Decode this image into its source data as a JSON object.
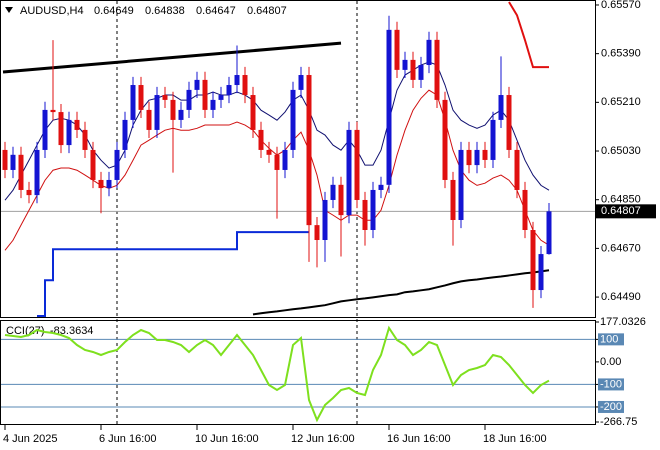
{
  "chart_data": {
    "type": "candlestick",
    "symbol": "AUDUSD,H4",
    "categories": [
      "4 Jun 2025",
      null,
      null,
      null,
      null,
      null,
      null,
      null,
      null,
      null,
      null,
      null,
      "6 Jun 16:00",
      null,
      null,
      null,
      null,
      null,
      null,
      null,
      null,
      null,
      null,
      null,
      "10 Jun 16:00",
      null,
      null,
      null,
      null,
      null,
      null,
      null,
      null,
      null,
      null,
      null,
      "12 Jun 16:00",
      null,
      null,
      null,
      null,
      null,
      null,
      null,
      null,
      null,
      null,
      null,
      "16 Jun 16:00",
      null,
      null,
      null,
      null,
      null,
      null,
      null,
      null,
      null,
      null,
      null,
      "18 Jun 16:00",
      null,
      null,
      null,
      null,
      null,
      null,
      null,
      null
    ],
    "open": [
      0.65034,
      0.6496,
      0.65016,
      0.64886,
      0.64867,
      0.65034,
      0.65182,
      0.65174,
      0.65052,
      0.65145,
      0.65108,
      0.65034,
      0.64923,
      0.64893,
      0.64923,
      0.65034,
      0.65145,
      0.65274,
      0.65182,
      0.65108,
      0.65237,
      0.65219,
      0.65145,
      0.65182,
      0.65256,
      0.65293,
      0.65182,
      0.65219,
      0.65237,
      0.65274,
      0.65311,
      0.65237,
      0.65108,
      0.65034,
      0.65016,
      0.6496,
      0.65034,
      0.65256,
      0.65311,
      0.64756,
      0.64701,
      0.64849,
      0.64905,
      0.64793,
      0.65108,
      0.64849,
      0.64738,
      0.64886,
      0.64905,
      0.65478,
      0.6533,
      0.65367,
      0.65293,
      0.65348,
      0.65441,
      0.65219,
      0.64923,
      0.64775,
      0.65034,
      0.64978,
      0.65034,
      0.64997,
      0.65145,
      0.65237,
      0.65034,
      0.64886,
      0.64738,
      0.64516,
      0.64649
    ],
    "high": [
      0.65064,
      0.65046,
      0.65046,
      0.64916,
      0.65064,
      0.65212,
      0.6544,
      0.65204,
      0.65175,
      0.65175,
      0.65138,
      0.65064,
      0.64953,
      0.64953,
      0.65064,
      0.65175,
      0.65304,
      0.65304,
      0.65212,
      0.65267,
      0.65267,
      0.65249,
      0.65212,
      0.65286,
      0.65323,
      0.65323,
      0.65249,
      0.65267,
      0.65304,
      0.6542,
      0.65341,
      0.65267,
      0.65138,
      0.65064,
      0.65046,
      0.65064,
      0.65286,
      0.65341,
      0.65341,
      0.64786,
      0.64879,
      0.64935,
      0.64935,
      0.65138,
      0.65138,
      0.64879,
      0.64916,
      0.64935,
      0.6553,
      0.65508,
      0.65397,
      0.65397,
      0.65378,
      0.65471,
      0.65471,
      0.65249,
      0.64953,
      0.65064,
      0.65064,
      0.65064,
      0.65064,
      0.65175,
      0.6538,
      0.65267,
      0.65064,
      0.64916,
      0.64768,
      0.64679,
      0.64838
    ],
    "low": [
      0.6493,
      0.6493,
      0.64856,
      0.64837,
      0.64837,
      0.65004,
      0.65144,
      0.65022,
      0.65022,
      0.65078,
      0.65004,
      0.64893,
      0.648,
      0.64863,
      0.64893,
      0.65004,
      0.65115,
      0.65152,
      0.65078,
      0.65078,
      0.65189,
      0.6495,
      0.65115,
      0.65152,
      0.65226,
      0.65152,
      0.65152,
      0.65189,
      0.65207,
      0.65244,
      0.65207,
      0.65078,
      0.65004,
      0.64986,
      0.6478,
      0.6493,
      0.65004,
      0.65226,
      0.6462,
      0.646,
      0.6462,
      0.64819,
      0.6464,
      0.64763,
      0.64819,
      0.6468,
      0.64708,
      0.64856,
      0.64875,
      0.653,
      0.653,
      0.65263,
      0.65263,
      0.65318,
      0.65189,
      0.64893,
      0.6468,
      0.64745,
      0.64948,
      0.64948,
      0.64967,
      0.64967,
      0.65115,
      0.65004,
      0.64856,
      0.64708,
      0.6445,
      0.64486,
      0.64647
    ],
    "close": [
      0.6496,
      0.65016,
      0.64886,
      0.64867,
      0.65034,
      0.65182,
      0.65174,
      0.65052,
      0.65145,
      0.65108,
      0.65034,
      0.64923,
      0.64893,
      0.64923,
      0.65034,
      0.65145,
      0.65274,
      0.65182,
      0.65108,
      0.65237,
      0.65219,
      0.65145,
      0.65182,
      0.65256,
      0.65293,
      0.65182,
      0.65219,
      0.65237,
      0.65274,
      0.65311,
      0.65237,
      0.65108,
      0.65034,
      0.65016,
      0.6496,
      0.65034,
      0.65256,
      0.65311,
      0.64756,
      0.64701,
      0.64849,
      0.64905,
      0.64793,
      0.65108,
      0.64849,
      0.64738,
      0.64886,
      0.64905,
      0.65478,
      0.6533,
      0.65367,
      0.65293,
      0.65348,
      0.65441,
      0.65219,
      0.64923,
      0.64775,
      0.65034,
      0.64978,
      0.65034,
      0.64997,
      0.65145,
      0.65237,
      0.65034,
      0.64886,
      0.64738,
      0.64516,
      0.64649,
      0.64807
    ],
    "color_up": "#1414d2",
    "color_down": "#e01010",
    "ylim": [
      0.6442,
      0.65581
    ],
    "yticks": [
      {
        "value": 0.6557,
        "label": "0.65570"
      },
      {
        "value": 0.6539,
        "label": "0.65390"
      },
      {
        "value": 0.6521,
        "label": "0.65210"
      },
      {
        "value": 0.6503,
        "label": "0.65030"
      },
      {
        "value": 0.6485,
        "label": "0.64850"
      },
      {
        "value": 0.6467,
        "label": "0.64670"
      },
      {
        "value": 0.6449,
        "label": "0.64490"
      }
    ],
    "grid": false,
    "lines": [
      {
        "color": "#101070",
        "values": [
          0.64848,
          0.64885,
          0.64941,
          0.64996,
          0.65052,
          0.65107,
          0.65144,
          0.65151,
          0.65144,
          0.65126,
          0.65089,
          0.65033,
          0.64996,
          0.64967,
          0.64978,
          0.65033,
          0.65126,
          0.65181,
          0.65218,
          0.65225,
          0.65237,
          0.65237,
          0.65218,
          0.65218,
          0.65237,
          0.65237,
          0.65248,
          0.65237,
          0.65237,
          0.65248,
          0.65237,
          0.65218,
          0.65181,
          0.65163,
          0.65144,
          0.65174,
          0.65218,
          0.65237,
          0.65181,
          0.65107,
          0.65089,
          0.65052,
          0.65033,
          0.6507,
          0.65033,
          0.64978,
          0.64978,
          0.65033,
          0.65144,
          0.65255,
          0.65311,
          0.65329,
          0.65348,
          0.65359,
          0.65348,
          0.65274,
          0.65181,
          0.65144,
          0.65126,
          0.65114,
          0.65126,
          0.65163,
          0.65181,
          0.65144,
          0.6507,
          0.64996,
          0.64941,
          0.64903,
          0.64885
        ]
      },
      {
        "color": "#d01010",
        "values": [
          0.64663,
          0.647,
          0.64756,
          0.64811,
          0.64866,
          0.64922,
          0.64959,
          0.64967,
          0.64967,
          0.64959,
          0.64941,
          0.64922,
          0.64903,
          0.64892,
          0.64903,
          0.64941,
          0.64996,
          0.65052,
          0.6507,
          0.65089,
          0.65107,
          0.65114,
          0.65107,
          0.65107,
          0.65114,
          0.65126,
          0.65126,
          0.65126,
          0.65126,
          0.65137,
          0.65126,
          0.65107,
          0.6507,
          0.6504,
          0.65015,
          0.65033,
          0.6507,
          0.651,
          0.65033,
          0.64941,
          0.64811,
          0.64793,
          0.64774,
          0.64793,
          0.64793,
          0.64774,
          0.64774,
          0.64811,
          0.64903,
          0.65015,
          0.65107,
          0.65181,
          0.65225,
          0.65255,
          0.65237,
          0.65144,
          0.65033,
          0.64959,
          0.64922,
          0.64903,
          0.64911,
          0.6493,
          0.64941,
          0.64922,
          0.64885,
          0.64811,
          0.64737,
          0.647,
          0.64682
        ]
      },
      {
        "color": "#000000",
        "values": [
          null,
          null,
          null,
          null,
          null,
          null,
          null,
          null,
          null,
          null,
          null,
          null,
          null,
          null,
          null,
          null,
          null,
          null,
          null,
          null,
          null,
          null,
          null,
          null,
          null,
          null,
          null,
          null,
          null,
          null,
          null,
          0.64426,
          0.6443,
          0.64434,
          0.64437,
          0.64441,
          0.64445,
          0.64448,
          0.64452,
          0.64456,
          0.6446,
          0.64467,
          0.64474,
          0.64478,
          0.64482,
          0.64485,
          0.64489,
          0.64493,
          0.64497,
          0.645,
          0.64508,
          0.64511,
          0.64515,
          0.64519,
          0.64526,
          0.64533,
          0.64541,
          0.64548,
          0.64552,
          0.64555,
          0.64559,
          0.64563,
          0.64566,
          0.6457,
          0.64574,
          0.64578,
          0.64581,
          0.64585,
          0.64589
        ]
      },
      {
        "color": "#0a2ad8",
        "step": true,
        "values": [
          null,
          null,
          null,
          null,
          0.6442,
          0.64552,
          0.64667,
          0.64667,
          0.64667,
          0.64667,
          0.64667,
          0.64667,
          0.64667,
          0.64667,
          0.64667,
          0.64667,
          0.64667,
          0.64667,
          0.64667,
          0.64667,
          0.64667,
          0.64667,
          0.64667,
          0.64667,
          0.64667,
          0.64667,
          0.64667,
          0.64667,
          0.64667,
          0.6473,
          0.6473,
          0.6473,
          0.6473,
          0.6473,
          0.6473,
          0.6473,
          0.6473,
          0.6473,
          0.6473,
          null,
          null,
          null,
          null,
          null,
          null,
          null,
          null,
          null,
          null,
          null,
          null,
          null,
          null,
          null,
          null,
          null,
          null,
          null,
          null,
          null,
          null,
          null,
          null,
          null,
          null,
          null,
          null,
          null,
          null
        ]
      },
      {
        "color": "#e01010",
        "values": [
          null,
          null,
          null,
          null,
          null,
          null,
          null,
          null,
          null,
          null,
          null,
          null,
          null,
          null,
          null,
          null,
          null,
          null,
          null,
          null,
          null,
          null,
          null,
          null,
          null,
          null,
          null,
          null,
          null,
          null,
          null,
          null,
          null,
          null,
          null,
          null,
          null,
          null,
          null,
          null,
          null,
          null,
          null,
          null,
          null,
          null,
          null,
          null,
          null,
          null,
          null,
          null,
          null,
          null,
          null,
          null,
          null,
          null,
          null,
          null,
          null,
          null,
          null,
          0.65581,
          0.65532,
          0.6544,
          0.6534,
          0.6534,
          0.6534
        ]
      }
    ],
    "trendline": {
      "color": "#000000",
      "x": [
        0,
        42
      ],
      "values": [
        0.65322,
        0.65429
      ]
    },
    "indicator": {
      "type": "line",
      "name": "CCI(27)",
      "color": "#7ee01e",
      "values": [
        119.3,
        114.9,
        110.5,
        119.3,
        141.5,
        132.7,
        128.2,
        119.3,
        106.0,
        74.9,
        52.8,
        43.9,
        30.6,
        43.9,
        52.8,
        88.3,
        119.3,
        141.5,
        128.2,
        97.1,
        97.1,
        88.3,
        74.9,
        43.9,
        74.9,
        97.1,
        74.9,
        30.6,
        74.9,
        119.3,
        74.9,
        30.6,
        -36.0,
        -102.6,
        -124.7,
        -102.6,
        74.9,
        106.0,
        -169.1,
        -257.8,
        -191.3,
        -160.2,
        -124.7,
        -115.9,
        -138.0,
        -146.9,
        -36.0,
        30.6,
        150.4,
        97.1,
        74.9,
        30.6,
        52.8,
        88.3,
        74.9,
        -13.8,
        -102.6,
        -58.2,
        -36.0,
        -27.1,
        -13.8,
        30.6,
        21.7,
        -13.8,
        -58.2,
        -102.6,
        -138.0,
        -102.6,
        -83.3634
      ],
      "ylim": [
        -266.75,
        177.0326
      ],
      "yticks": [
        177.0326,
        100,
        {
          "value": 0,
          "label": "0.00"
        },
        -100,
        -200,
        -266.75
      ],
      "levels": [
        100,
        -100,
        -200
      ],
      "level_color": "#5a88b4"
    }
  }
}
